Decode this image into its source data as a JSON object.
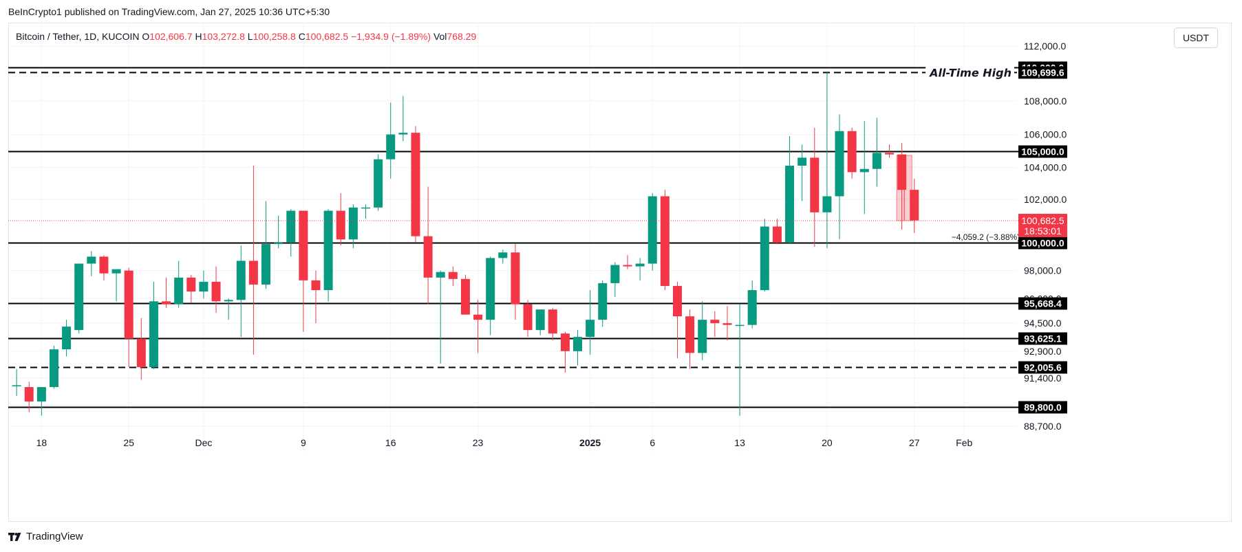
{
  "header": {
    "published": "BeInCrypto1 published on TradingView.com, Jan 27, 2025 10:36 UTC+5:30"
  },
  "legend": {
    "symbol": "Bitcoin / Tether, 1D, KUCOIN",
    "o_label": "O",
    "o_value": "102,606.7",
    "h_label": "H",
    "h_value": "103,272.8",
    "l_label": "L",
    "l_value": "100,258.8",
    "c_label": "C",
    "c_value": "100,682.5",
    "change": "−1,934.9 (−1.89%)",
    "vol_label": "Vol",
    "vol_value": "768.29"
  },
  "currency_button": "USDT",
  "footer": {
    "brand": "TradingView"
  },
  "colors": {
    "up": "#089981",
    "down": "#f23645",
    "grid": "#f0f3fa",
    "level": "#000000"
  },
  "chart_data": {
    "type": "candlestick",
    "title": "Bitcoin / Tether, 1D, KUCOIN",
    "y_axis": {
      "ticks": [
        112000,
        108000,
        106000,
        104000,
        102000,
        98000,
        96000,
        94500,
        92900,
        91400,
        89900,
        88700
      ],
      "tick_labels": [
        "112,000.0",
        "108,000.0",
        "106,000.0",
        "104,000.0",
        "102,000.0",
        "98,000.0",
        "96,000.0",
        "94,500.0",
        "92,900.0",
        "91,400.0",
        "89,900.0",
        "88,700.0"
      ]
    },
    "x_axis": {
      "labels": [
        {
          "i": 3,
          "text": "18",
          "bold": false
        },
        {
          "i": 10,
          "text": "25",
          "bold": false
        },
        {
          "i": 16,
          "text": "Dec",
          "bold": false
        },
        {
          "i": 24,
          "text": "9",
          "bold": false
        },
        {
          "i": 31,
          "text": "16",
          "bold": false
        },
        {
          "i": 38,
          "text": "23",
          "bold": false
        },
        {
          "i": 47,
          "text": "2025",
          "bold": true
        },
        {
          "i": 52,
          "text": "6",
          "bold": false
        },
        {
          "i": 59,
          "text": "13",
          "bold": false
        },
        {
          "i": 66,
          "text": "20",
          "bold": false
        },
        {
          "i": 73,
          "text": "27",
          "bold": false
        },
        {
          "i": 77,
          "text": "Feb",
          "bold": false
        }
      ]
    },
    "levels": [
      {
        "price": 110000,
        "label": "110,000.0",
        "style": "solid"
      },
      {
        "price": 109699.6,
        "label": "109,699.6",
        "style": "dashed",
        "annotation": "All-Time High"
      },
      {
        "price": 105000,
        "label": "105,000.0",
        "style": "solid"
      },
      {
        "price": 100000,
        "label": "100,000.0",
        "style": "solid"
      },
      {
        "price": 95668.4,
        "label": "95,668.4",
        "style": "solid"
      },
      {
        "price": 93625.1,
        "label": "93,625.1",
        "style": "solid"
      },
      {
        "price": 92005.6,
        "label": "92,005.6",
        "style": "dashed"
      },
      {
        "price": 89800,
        "label": "89,800.0",
        "style": "solid"
      }
    ],
    "current_price": {
      "price": 100682.5,
      "label": "100,682.5",
      "countdown": "18:53:01"
    },
    "measure": {
      "text": "−4,059.2 (−3.88%) −40,592",
      "from_index": 72,
      "to_index": 73,
      "from_price": 104742,
      "to_price": 100682.5
    },
    "candles": [
      {
        "o": 89900,
        "h": 91600,
        "l": 87000,
        "c": 89600
      },
      {
        "o": 91000,
        "h": 91900,
        "l": 90400,
        "c": 91000
      },
      {
        "o": 90900,
        "h": 91200,
        "l": 89500,
        "c": 90100
      },
      {
        "o": 90100,
        "h": 90900,
        "l": 89300,
        "c": 90900
      },
      {
        "o": 90900,
        "h": 93200,
        "l": 90800,
        "c": 93000
      },
      {
        "o": 93000,
        "h": 94700,
        "l": 92600,
        "c": 94300
      },
      {
        "o": 94100,
        "h": 98500,
        "l": 93900,
        "c": 98500
      },
      {
        "o": 98500,
        "h": 99400,
        "l": 97600,
        "c": 99000
      },
      {
        "o": 99000,
        "h": 99100,
        "l": 97300,
        "c": 97800
      },
      {
        "o": 97800,
        "h": 98000,
        "l": 95800,
        "c": 98100
      },
      {
        "o": 98000,
        "h": 98200,
        "l": 92000,
        "c": 93600
      },
      {
        "o": 93600,
        "h": 94800,
        "l": 91300,
        "c": 92000
      },
      {
        "o": 92000,
        "h": 97200,
        "l": 91900,
        "c": 95800
      },
      {
        "o": 95800,
        "h": 97500,
        "l": 95400,
        "c": 95600
      },
      {
        "o": 95600,
        "h": 98700,
        "l": 95400,
        "c": 97500
      },
      {
        "o": 97500,
        "h": 97700,
        "l": 95700,
        "c": 96500
      },
      {
        "o": 96500,
        "h": 98000,
        "l": 96000,
        "c": 97200
      },
      {
        "o": 97200,
        "h": 98300,
        "l": 95100,
        "c": 95800
      },
      {
        "o": 95800,
        "h": 96000,
        "l": 94700,
        "c": 95900
      },
      {
        "o": 95900,
        "h": 99800,
        "l": 93700,
        "c": 98700
      },
      {
        "o": 98700,
        "h": 104100,
        "l": 92700,
        "c": 97000
      },
      {
        "o": 97000,
        "h": 101900,
        "l": 96700,
        "c": 99900
      },
      {
        "o": 99900,
        "h": 101000,
        "l": 99600,
        "c": 100000
      },
      {
        "o": 100000,
        "h": 101400,
        "l": 99000,
        "c": 101300
      },
      {
        "o": 101300,
        "h": 101300,
        "l": 94000,
        "c": 97300
      },
      {
        "o": 97300,
        "h": 98000,
        "l": 94500,
        "c": 96600
      },
      {
        "o": 96600,
        "h": 101400,
        "l": 95800,
        "c": 101300
      },
      {
        "o": 101300,
        "h": 102400,
        "l": 99800,
        "c": 100100
      },
      {
        "o": 100100,
        "h": 101700,
        "l": 99600,
        "c": 101500
      },
      {
        "o": 101500,
        "h": 101700,
        "l": 100800,
        "c": 101500
      },
      {
        "o": 101500,
        "h": 104800,
        "l": 101300,
        "c": 104500
      },
      {
        "o": 104500,
        "h": 107900,
        "l": 103300,
        "c": 106000
      },
      {
        "o": 106000,
        "h": 108300,
        "l": 105600,
        "c": 106100
      },
      {
        "o": 106100,
        "h": 106500,
        "l": 100000,
        "c": 100200
      },
      {
        "o": 100200,
        "h": 102800,
        "l": 95600,
        "c": 97500
      },
      {
        "o": 97500,
        "h": 98000,
        "l": 92200,
        "c": 97900
      },
      {
        "o": 97900,
        "h": 98300,
        "l": 96900,
        "c": 97400
      },
      {
        "o": 97400,
        "h": 97700,
        "l": 95000,
        "c": 95000
      },
      {
        "o": 95000,
        "h": 95900,
        "l": 92800,
        "c": 94700
      },
      {
        "o": 94700,
        "h": 99000,
        "l": 93800,
        "c": 98900
      },
      {
        "o": 98900,
        "h": 99500,
        "l": 98500,
        "c": 99300
      },
      {
        "o": 99300,
        "h": 99900,
        "l": 94700,
        "c": 95600
      },
      {
        "o": 95600,
        "h": 95900,
        "l": 93700,
        "c": 94100
      },
      {
        "o": 94100,
        "h": 95300,
        "l": 93800,
        "c": 95300
      },
      {
        "o": 95300,
        "h": 95400,
        "l": 93500,
        "c": 93900
      },
      {
        "o": 93900,
        "h": 94000,
        "l": 91700,
        "c": 92900
      },
      {
        "o": 92900,
        "h": 94100,
        "l": 92100,
        "c": 93700
      },
      {
        "o": 93700,
        "h": 96600,
        "l": 92700,
        "c": 94700
      },
      {
        "o": 94700,
        "h": 97300,
        "l": 94300,
        "c": 97100
      },
      {
        "o": 97100,
        "h": 98600,
        "l": 96100,
        "c": 98400
      },
      {
        "o": 98400,
        "h": 99100,
        "l": 98100,
        "c": 98300
      },
      {
        "o": 98300,
        "h": 98900,
        "l": 97300,
        "c": 98500
      },
      {
        "o": 98500,
        "h": 102400,
        "l": 98000,
        "c": 102200
      },
      {
        "o": 102200,
        "h": 102600,
        "l": 96600,
        "c": 96900
      },
      {
        "o": 96900,
        "h": 97200,
        "l": 92500,
        "c": 94900
      },
      {
        "o": 94900,
        "h": 95300,
        "l": 91900,
        "c": 92800
      },
      {
        "o": 92800,
        "h": 95800,
        "l": 92400,
        "c": 94700
      },
      {
        "o": 94700,
        "h": 95200,
        "l": 93700,
        "c": 94500
      },
      {
        "o": 94500,
        "h": 95500,
        "l": 93500,
        "c": 94400
      },
      {
        "o": 94400,
        "h": 95600,
        "l": 89300,
        "c": 94400
      },
      {
        "o": 94400,
        "h": 97300,
        "l": 94200,
        "c": 96600
      },
      {
        "o": 96600,
        "h": 100800,
        "l": 96500,
        "c": 100500
      },
      {
        "o": 100500,
        "h": 100800,
        "l": 99900,
        "c": 100000
      },
      {
        "o": 100000,
        "h": 105900,
        "l": 99900,
        "c": 104100
      },
      {
        "o": 104100,
        "h": 105400,
        "l": 101900,
        "c": 104600
      },
      {
        "o": 104600,
        "h": 106400,
        "l": 99700,
        "c": 101200
      },
      {
        "o": 101200,
        "h": 109700,
        "l": 99600,
        "c": 102200
      },
      {
        "o": 102200,
        "h": 107200,
        "l": 100100,
        "c": 106200
      },
      {
        "o": 106200,
        "h": 106400,
        "l": 103300,
        "c": 103700
      },
      {
        "o": 103700,
        "h": 106800,
        "l": 101100,
        "c": 103900
      },
      {
        "o": 103900,
        "h": 107000,
        "l": 102800,
        "c": 104900
      },
      {
        "o": 104900,
        "h": 105400,
        "l": 104600,
        "c": 104800
      },
      {
        "o": 104800,
        "h": 105500,
        "l": 100400,
        "c": 102600
      },
      {
        "o": 102600,
        "h": 103300,
        "l": 100300,
        "c": 100700
      }
    ]
  }
}
